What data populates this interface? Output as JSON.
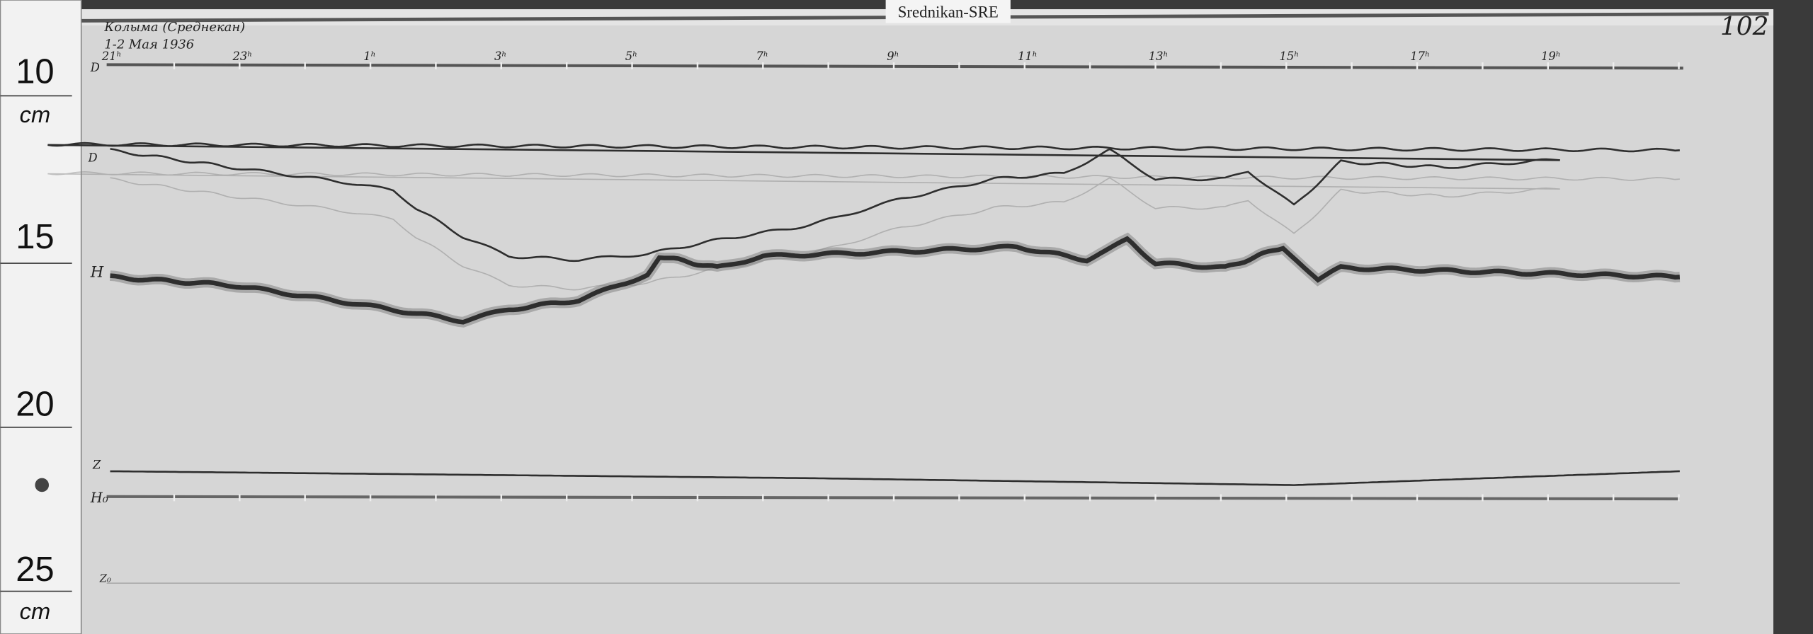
{
  "station_label": "Srednikan-SRE",
  "sheet_number": "102",
  "header_handwritten": {
    "station": "Колыма (Среднекан)",
    "date": "1-2 Мая 1936"
  },
  "ruler": {
    "labels": [
      "10",
      "15",
      "20",
      "25"
    ],
    "unit_top": "cm",
    "unit_bottom": "cm"
  },
  "trace_labels": {
    "D": "D",
    "H": "H",
    "Z": "Z",
    "H0": "H₀",
    "Z0": "Z₀"
  },
  "chart_data": {
    "type": "line",
    "title": "",
    "xlabel": "",
    "ylabel": "",
    "x_ticks": [
      "23ʰ",
      "1ʰ",
      "3ʰ",
      "5ʰ",
      "7ʰ",
      "9ʰ",
      "11ʰ",
      "13ʰ",
      "15ʰ",
      "17ʰ",
      "19ʰ",
      "21ʰ"
    ],
    "x_tick_hours": [
      23,
      1,
      3,
      5,
      7,
      9,
      11,
      13,
      15,
      17,
      19,
      21
    ],
    "y_unit": "cm (left ruler)",
    "y_range": [
      10,
      25
    ],
    "grid": false,
    "series": [
      {
        "name": "D",
        "x": [
          "21:00",
          "22:53",
          "00:39",
          "01:21",
          "01:42",
          "02:25",
          "03:07",
          "04:11",
          "05:14",
          "06:18",
          "07:43",
          "09:07",
          "10:32",
          "11:36",
          "12:18",
          "13:00",
          "14:04",
          "14:25",
          "15:07",
          "15:50",
          "17:25",
          "19:11",
          "20:04",
          "21:00"
        ],
        "y": [
          12.45,
          12.97,
          13.43,
          13.67,
          14.2,
          15.07,
          15.66,
          15.77,
          15.59,
          15.17,
          14.72,
          13.92,
          13.32,
          13.15,
          12.45,
          13.32,
          13.32,
          13.08,
          14.13,
          12.8,
          12.97,
          12.73,
          12.27,
          12.45
        ]
      },
      {
        "name": "H",
        "x": [
          "21:00",
          "22:53",
          "00:39",
          "02:25",
          "03:07",
          "04:11",
          "05:14",
          "05:25",
          "06:18",
          "07:00",
          "09:07",
          "10:53",
          "11:57",
          "12:34",
          "13:00",
          "14:04",
          "14:57",
          "15:29",
          "15:50",
          "18:19",
          "21:00"
        ],
        "y": [
          16.29,
          16.54,
          17.06,
          17.62,
          17.27,
          16.99,
          16.22,
          15.66,
          16.01,
          15.66,
          15.52,
          15.38,
          15.77,
          15.17,
          15.87,
          16.01,
          15.38,
          16.36,
          16.01,
          16.15,
          16.29
        ]
      },
      {
        "name": "Z",
        "x": [
          "21:00",
          "07:43",
          "15:07",
          "21:00"
        ],
        "y": [
          22.17,
          22.38,
          22.59,
          22.17
        ]
      }
    ]
  },
  "colors": {
    "paper": "#d6d6d6",
    "trace": "#2e2e2e",
    "ruler": "#f2f2f2",
    "frame": "#3a3a3a"
  }
}
